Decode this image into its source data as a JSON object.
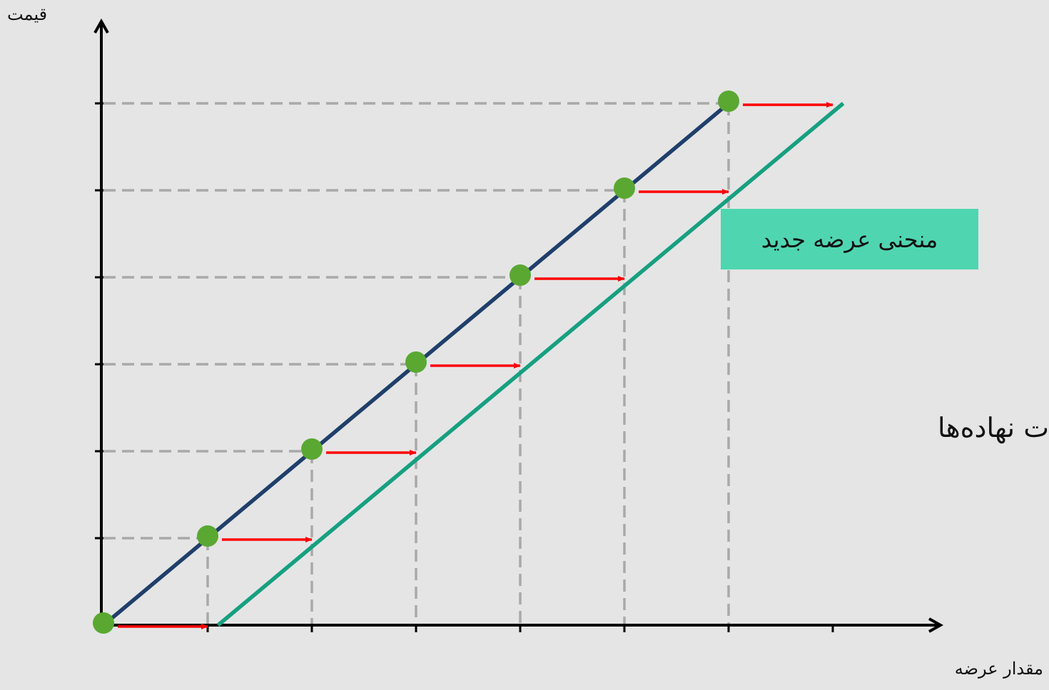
{
  "chart_data": {
    "type": "line",
    "ylabel": "قیمت",
    "xlabel": "مقدار عرضه",
    "annotation": "منحنی عرضه جدید",
    "side_text": "ت نهاده‌ها",
    "x_ticks": [
      1,
      2,
      3,
      4,
      5,
      6,
      7
    ],
    "y_ticks": [
      1,
      2,
      3,
      4,
      5,
      6
    ],
    "xlim": [
      0,
      8
    ],
    "ylim": [
      0,
      6.5
    ],
    "grid": false,
    "series": [
      {
        "color": "#1f3f6b",
        "points": [
          [
            0,
            0
          ],
          [
            1,
            1
          ],
          [
            2,
            2
          ],
          [
            3,
            3
          ],
          [
            4,
            4
          ],
          [
            5,
            5
          ],
          [
            6,
            6
          ]
        ]
      },
      {
        "color": "#16a080",
        "points": [
          [
            1.1,
            0
          ],
          [
            7.1,
            6
          ]
        ]
      }
    ],
    "point_color": "#5aa832",
    "arrow_color": "#ff0000",
    "guide_color": "#a9a9a9",
    "shift_arrows": [
      {
        "from": [
          0,
          0
        ],
        "to": [
          1,
          0
        ]
      },
      {
        "from": [
          1,
          1
        ],
        "to": [
          2,
          1
        ]
      },
      {
        "from": [
          2,
          2
        ],
        "to": [
          3,
          2
        ]
      },
      {
        "from": [
          3,
          3
        ],
        "to": [
          4,
          3
        ]
      },
      {
        "from": [
          4,
          4
        ],
        "to": [
          5,
          4
        ]
      },
      {
        "from": [
          5,
          5
        ],
        "to": [
          6,
          5
        ]
      },
      {
        "from": [
          6,
          6
        ],
        "to": [
          7,
          6
        ]
      }
    ]
  }
}
